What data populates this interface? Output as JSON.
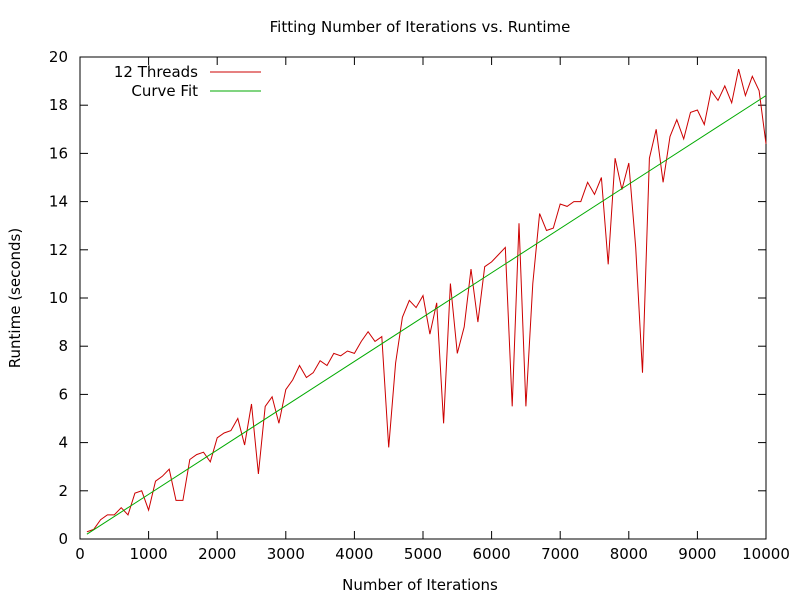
{
  "chart_data": {
    "type": "line",
    "title": "Fitting Number of Iterations vs. Runtime",
    "xlabel": "Number of Iterations",
    "ylabel": "Runtime (seconds)",
    "xlim": [
      0,
      10000
    ],
    "ylim": [
      0,
      20
    ],
    "xticks": [
      0,
      1000,
      2000,
      3000,
      4000,
      5000,
      6000,
      7000,
      8000,
      9000,
      10000
    ],
    "yticks": [
      0,
      2,
      4,
      6,
      8,
      10,
      12,
      14,
      16,
      18,
      20
    ],
    "grid": false,
    "legend_position": "top-left",
    "series": [
      {
        "name": "12 Threads",
        "color": "#cc0000",
        "x": [
          100,
          200,
          300,
          400,
          500,
          600,
          700,
          800,
          900,
          1000,
          1100,
          1200,
          1300,
          1400,
          1500,
          1600,
          1700,
          1800,
          1900,
          2000,
          2100,
          2200,
          2300,
          2400,
          2500,
          2600,
          2700,
          2800,
          2900,
          3000,
          3100,
          3200,
          3300,
          3400,
          3500,
          3600,
          3700,
          3800,
          3900,
          4000,
          4100,
          4200,
          4300,
          4400,
          4500,
          4600,
          4700,
          4800,
          4900,
          5000,
          5100,
          5200,
          5300,
          5400,
          5500,
          5600,
          5700,
          5800,
          5900,
          6000,
          6100,
          6200,
          6300,
          6400,
          6500,
          6600,
          6700,
          6800,
          6900,
          7000,
          7100,
          7200,
          7300,
          7400,
          7500,
          7600,
          7700,
          7800,
          7900,
          8000,
          8100,
          8200,
          8300,
          8400,
          8500,
          8600,
          8700,
          8800,
          8900,
          9000,
          9100,
          9200,
          9300,
          9400,
          9500,
          9600,
          9700,
          9800,
          9900,
          10000
        ],
        "y": [
          0.3,
          0.4,
          0.8,
          1.0,
          1.0,
          1.3,
          1.0,
          1.9,
          2.0,
          1.2,
          2.4,
          2.6,
          2.9,
          1.6,
          1.6,
          3.3,
          3.5,
          3.6,
          3.2,
          4.2,
          4.4,
          4.5,
          5.0,
          3.9,
          5.6,
          2.7,
          5.5,
          5.9,
          4.8,
          6.2,
          6.6,
          7.2,
          6.7,
          6.9,
          7.4,
          7.2,
          7.7,
          7.6,
          7.8,
          7.7,
          8.2,
          8.6,
          8.2,
          8.4,
          3.8,
          7.3,
          9.2,
          9.9,
          9.6,
          10.1,
          8.5,
          9.8,
          4.8,
          10.6,
          7.7,
          8.8,
          11.2,
          9.0,
          11.3,
          11.5,
          11.8,
          12.1,
          5.5,
          13.1,
          5.5,
          10.6,
          13.5,
          12.8,
          12.9,
          13.9,
          13.8,
          14.0,
          14.0,
          14.8,
          14.3,
          15.0,
          11.4,
          15.8,
          14.5,
          15.6,
          12.1,
          6.9,
          15.8,
          17.0,
          14.8,
          16.7,
          17.4,
          16.6,
          17.7,
          17.8,
          17.2,
          18.6,
          18.2,
          18.8,
          18.1,
          19.5,
          18.4,
          19.2,
          18.6,
          16.4
        ]
      },
      {
        "name": "Curve Fit",
        "color": "#00aa00",
        "x": [
          100,
          10000
        ],
        "y": [
          0.2,
          18.4
        ]
      }
    ]
  }
}
